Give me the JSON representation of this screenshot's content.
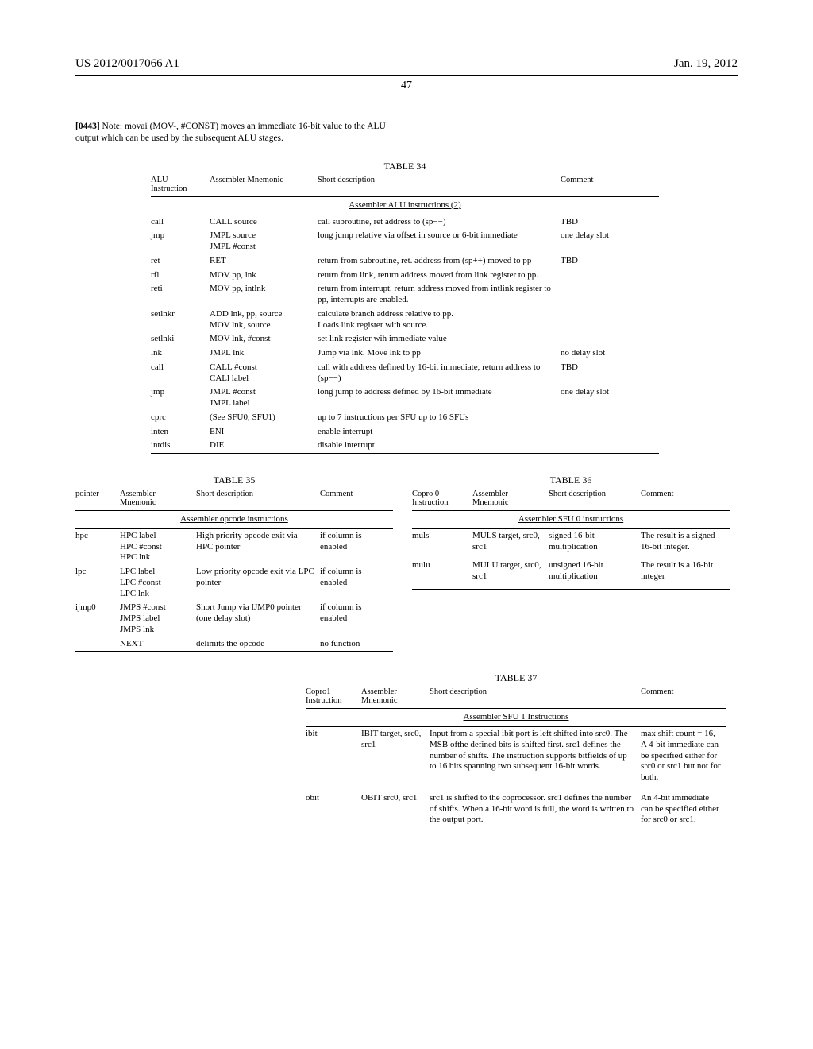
{
  "header": {
    "left": "US 2012/0017066 A1",
    "right": "Jan. 19, 2012",
    "page": "47"
  },
  "paragraph": {
    "num": "[0443]",
    "text": " Note: movai (MOV-, #CONST) moves an immediate 16-bit value to the ALU output which can be used by the subsequent ALU stages."
  },
  "table34": {
    "title": "TABLE 34",
    "subtitle": "Assembler ALU instructions (2)",
    "headers": [
      "ALU Instruction",
      "Assembler Mnemonic",
      "Short description",
      "Comment"
    ],
    "rows": [
      [
        "call",
        "CALL source",
        "call subroutine, ret address to (sp−−)",
        "TBD"
      ],
      [
        "jmp",
        "JMPL source\nJMPL #const",
        "long jump relative via offset in source or 6-bit immediate",
        "one delay slot"
      ],
      [
        "ret",
        "RET",
        "return from subroutine, ret. address from (sp++) moved to pp",
        "TBD"
      ],
      [
        "rfl",
        "MOV pp, lnk",
        "return from link, return address moved from link register to pp.",
        ""
      ],
      [
        "reti",
        "MOV pp, intlnk",
        "return from interrupt, return address moved from intlink register to pp, interrupts are enabled.",
        ""
      ],
      [
        "setlnkr",
        "ADD lnk, pp, source\nMOV lnk, source",
        "calculate branch address relative to pp.\nLoads link register with source.",
        ""
      ],
      [
        "setlnki",
        "MOV lnk, #const",
        "set link register wih immediate value",
        ""
      ],
      [
        "lnk",
        "JMPL lnk",
        "Jump via lnk. Move lnk to pp",
        "no delay slot"
      ],
      [
        "call",
        "CALL #const\nCALl label",
        "call with address defined by 16-bit immediate, return address to (sp−−)",
        "TBD"
      ],
      [
        "jmp",
        "JMPL #const\nJMPL label",
        "long jump to address defined by 16-bit immediate",
        "one delay slot"
      ],
      [
        "cprc",
        "(See SFU0, SFU1)",
        "up to 7 instructions per SFU up to 16 SFUs",
        ""
      ],
      [
        "inten",
        "ENI",
        "enable interrupt",
        ""
      ],
      [
        "intdis",
        "DIE",
        "disable interrupt",
        ""
      ]
    ]
  },
  "table35": {
    "title": "TABLE 35",
    "subtitle": "Assembler opcode instructions",
    "headers": [
      "pointer",
      "Assembler Mnemonic",
      "Short description",
      "Comment"
    ],
    "rows": [
      [
        "hpc",
        "HPC label\nHPC #const\nHPC lnk",
        "High priority opcode exit via HPC pointer",
        "if column is enabled"
      ],
      [
        "lpc",
        "LPC label\nLPC #const\nLPC lnk",
        "Low priority opcode exit via LPC pointer",
        "if column is enabled"
      ],
      [
        "ijmp0",
        "JMPS #const\nJMPS label\nJMPS lnk",
        "Short Jump via IJMP0 pointer (one delay slot)",
        "if column is enabled"
      ],
      [
        "",
        "NEXT",
        "delimits the opcode",
        "no function"
      ]
    ]
  },
  "table36": {
    "title": "TABLE 36",
    "subtitle": "Assembler SFU 0 instructions",
    "headers": [
      "Copro 0 Instruction",
      "Assembler Mnemonic",
      "Short description",
      "Comment"
    ],
    "rows": [
      [
        "muls",
        "MULS target, src0, src1",
        "signed 16-bit multiplication",
        "The result is a signed 16-bit integer."
      ],
      [
        "mulu",
        "MULU target, src0, src1",
        "unsigned 16-bit multiplication",
        "The result is a 16-bit integer"
      ]
    ]
  },
  "table37": {
    "title": "TABLE 37",
    "subtitle": "Assembler SFU 1 Instructions",
    "headers": [
      "Copro1 Instruction",
      "Assembler Mnemonic",
      "Short description",
      "Comment"
    ],
    "rows": [
      [
        "ibit",
        "IBIT target, src0, src1",
        "Input from a special ibit port is left shifted into src0. The MSB ofthe defined bits is shifted first. src1 defines the number of shifts. The instruction supports bitfields of up to 16 bits spanning two subsequent 16-bit words.",
        "max shift count = 16, A 4-bit immediate can be specified either for src0 or src1 but not for both."
      ],
      [
        "obit",
        "OBIT src0, src1",
        "src1 is shifted to the coprocessor. src1 defines the number of shifts. When a 16-bit word is full, the word is written to the output port.",
        "An 4-bit immediate can be specified either for src0 or src1."
      ]
    ]
  }
}
